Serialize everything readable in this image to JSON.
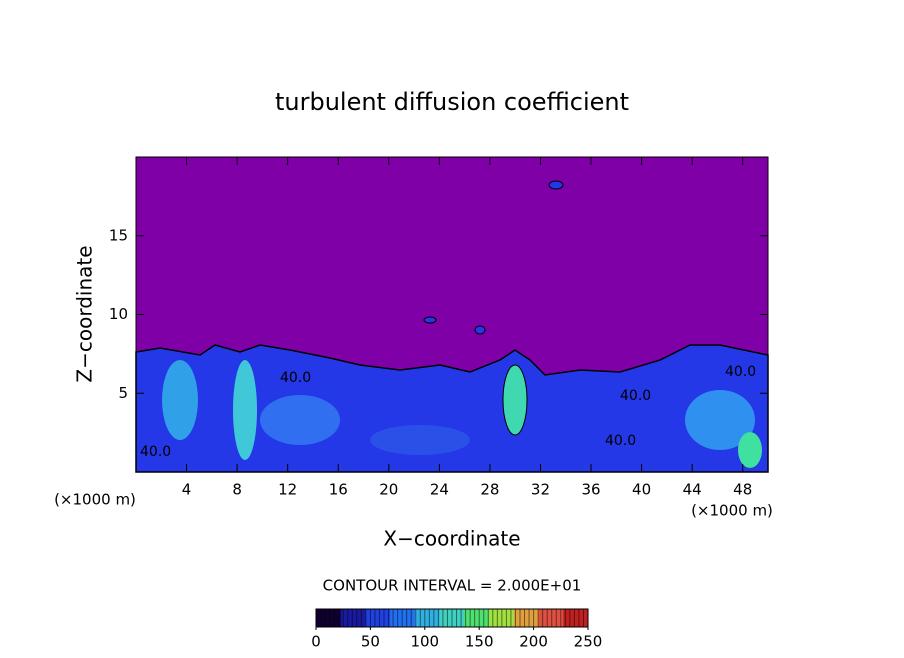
{
  "chart_data": {
    "type": "contour",
    "title": "turbulent diffusion coefficient",
    "xlabel": "X−coordinate",
    "ylabel": "Z−coordinate",
    "x_unit_label": "(×1000 m)",
    "x_unit_label_right": "(×1000 m)",
    "contour_interval": "CONTOUR INTERVAL = 2.000E+01",
    "annotations": [
      "40.0",
      "40.0",
      "40.0",
      "40.0",
      "40.0"
    ],
    "xlim": [
      0,
      50
    ],
    "xticks": [
      4,
      8,
      12,
      16,
      20,
      24,
      28,
      32,
      36,
      40,
      44,
      48
    ],
    "ylim": [
      0,
      20
    ],
    "yticks": [
      5,
      10,
      15
    ],
    "colorbar": {
      "lim": [
        0,
        250
      ],
      "ticks": [
        0,
        50,
        100,
        150,
        200,
        250
      ],
      "colors": [
        "#100030",
        "#1a1aa0",
        "#2040e0",
        "#2070f0",
        "#30b0e0",
        "#40d0c0",
        "#50e070",
        "#a0e040",
        "#e0a040",
        "#e05040",
        "#c02020"
      ]
    }
  }
}
